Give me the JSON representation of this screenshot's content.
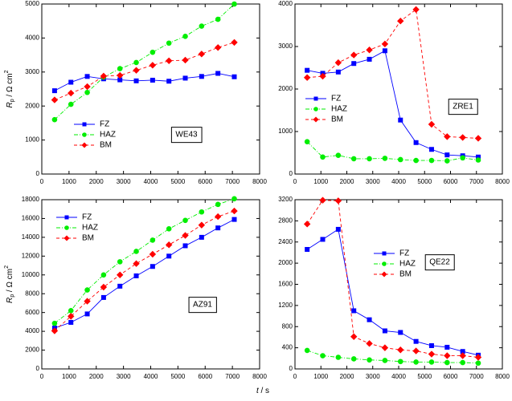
{
  "x_label": {
    "symbol": "t",
    "unit": " / s"
  },
  "chart_data": [
    {
      "type": "line",
      "annotation": "WE43",
      "y_label": {
        "symbol": "R",
        "subscript": "p",
        "unit": " / Ω cm",
        "superscript": "2"
      },
      "x": [
        470,
        1070,
        1670,
        2270,
        2870,
        3470,
        4070,
        4670,
        5270,
        5870,
        6470,
        7070
      ],
      "xlim": [
        0,
        8000
      ],
      "xticks": [
        0,
        1000,
        2000,
        3000,
        4000,
        5000,
        6000,
        7000,
        8000
      ],
      "ylim": [
        0,
        5000
      ],
      "yticks": [
        0,
        1000,
        2000,
        3000,
        4000,
        5000
      ],
      "series": [
        {
          "name": "FZ",
          "color": "#0000ff",
          "marker": "square",
          "line_style": "solid",
          "values": [
            2450,
            2700,
            2870,
            2800,
            2770,
            2740,
            2760,
            2730,
            2820,
            2870,
            2960,
            2860
          ]
        },
        {
          "name": "HAZ",
          "color": "#00ee00",
          "marker": "circle",
          "line_style": "dashdot",
          "values": [
            1600,
            2050,
            2400,
            2850,
            3100,
            3280,
            3580,
            3850,
            4050,
            4350,
            4550,
            5000
          ]
        },
        {
          "name": "BM",
          "color": "#ff0000",
          "marker": "diamond",
          "line_style": "dashed",
          "values": [
            2180,
            2380,
            2570,
            2880,
            2900,
            3050,
            3200,
            3330,
            3350,
            3530,
            3720,
            3870
          ]
        }
      ]
    },
    {
      "type": "line",
      "annotation": "ZRE1",
      "x": [
        470,
        1070,
        1670,
        2270,
        2870,
        3470,
        4070,
        4670,
        5270,
        5870,
        6470,
        7070
      ],
      "xlim": [
        0,
        8000
      ],
      "xticks": [
        0,
        1000,
        2000,
        3000,
        4000,
        5000,
        6000,
        7000,
        8000
      ],
      "ylim": [
        0,
        4000
      ],
      "yticks": [
        0,
        1000,
        2000,
        3000,
        4000
      ],
      "series": [
        {
          "name": "FZ",
          "color": "#0000ff",
          "marker": "square",
          "line_style": "solid",
          "values": [
            2440,
            2370,
            2400,
            2600,
            2700,
            2900,
            1270,
            740,
            580,
            450,
            430,
            400
          ]
        },
        {
          "name": "HAZ",
          "color": "#00ee00",
          "marker": "circle",
          "line_style": "dashdot",
          "values": [
            760,
            400,
            440,
            360,
            360,
            370,
            340,
            320,
            320,
            310,
            380,
            330
          ]
        },
        {
          "name": "BM",
          "color": "#ff0000",
          "marker": "diamond",
          "line_style": "dashed",
          "values": [
            2270,
            2300,
            2620,
            2800,
            2920,
            3060,
            3600,
            3870,
            1170,
            880,
            860,
            840
          ]
        }
      ]
    },
    {
      "type": "line",
      "annotation": "AZ91",
      "y_label": {
        "symbol": "R",
        "subscript": "p",
        "unit": " / Ω cm",
        "superscript": "2"
      },
      "x": [
        470,
        1070,
        1670,
        2270,
        2870,
        3470,
        4070,
        4670,
        5270,
        5870,
        6470,
        7070
      ],
      "xlim": [
        0,
        8000
      ],
      "xticks": [
        0,
        1000,
        2000,
        3000,
        4000,
        5000,
        6000,
        7000,
        8000
      ],
      "ylim": [
        0,
        18000
      ],
      "yticks": [
        0,
        2000,
        4000,
        6000,
        8000,
        10000,
        12000,
        14000,
        16000,
        18000
      ],
      "series": [
        {
          "name": "FZ",
          "color": "#0000ff",
          "marker": "square",
          "line_style": "solid",
          "values": [
            4350,
            4950,
            5850,
            7600,
            8800,
            9900,
            10900,
            12000,
            13100,
            14000,
            15000,
            15900
          ]
        },
        {
          "name": "HAZ",
          "color": "#00ee00",
          "marker": "circle",
          "line_style": "dashdot",
          "values": [
            4850,
            6200,
            8400,
            10000,
            11400,
            12500,
            13700,
            14900,
            15800,
            16700,
            17500,
            18100
          ]
        },
        {
          "name": "BM",
          "color": "#ff0000",
          "marker": "diamond",
          "line_style": "dashed",
          "values": [
            4050,
            5600,
            7200,
            8700,
            10000,
            11200,
            12200,
            13200,
            14200,
            15300,
            16200,
            16800
          ]
        }
      ]
    },
    {
      "type": "line",
      "annotation": "QE22",
      "x": [
        470,
        1070,
        1670,
        2270,
        2870,
        3470,
        4070,
        4670,
        5270,
        5870,
        6470,
        7070
      ],
      "xlim": [
        0,
        8000
      ],
      "xticks": [
        0,
        1000,
        2000,
        3000,
        4000,
        5000,
        6000,
        7000,
        8000
      ],
      "ylim": [
        0,
        3200
      ],
      "yticks": [
        0,
        400,
        800,
        1200,
        1600,
        2000,
        2400,
        2800,
        3200
      ],
      "series": [
        {
          "name": "FZ",
          "color": "#0000ff",
          "marker": "square",
          "line_style": "solid",
          "values": [
            2260,
            2450,
            2640,
            1100,
            930,
            720,
            690,
            520,
            440,
            410,
            330,
            260
          ]
        },
        {
          "name": "HAZ",
          "color": "#00ee00",
          "marker": "circle",
          "line_style": "dashdot",
          "values": [
            350,
            250,
            220,
            190,
            170,
            160,
            140,
            130,
            130,
            120,
            120,
            110
          ]
        },
        {
          "name": "BM",
          "color": "#ff0000",
          "marker": "diamond",
          "line_style": "dashed",
          "values": [
            2740,
            3190,
            3180,
            610,
            480,
            400,
            360,
            340,
            280,
            250,
            250,
            220
          ]
        }
      ]
    }
  ]
}
